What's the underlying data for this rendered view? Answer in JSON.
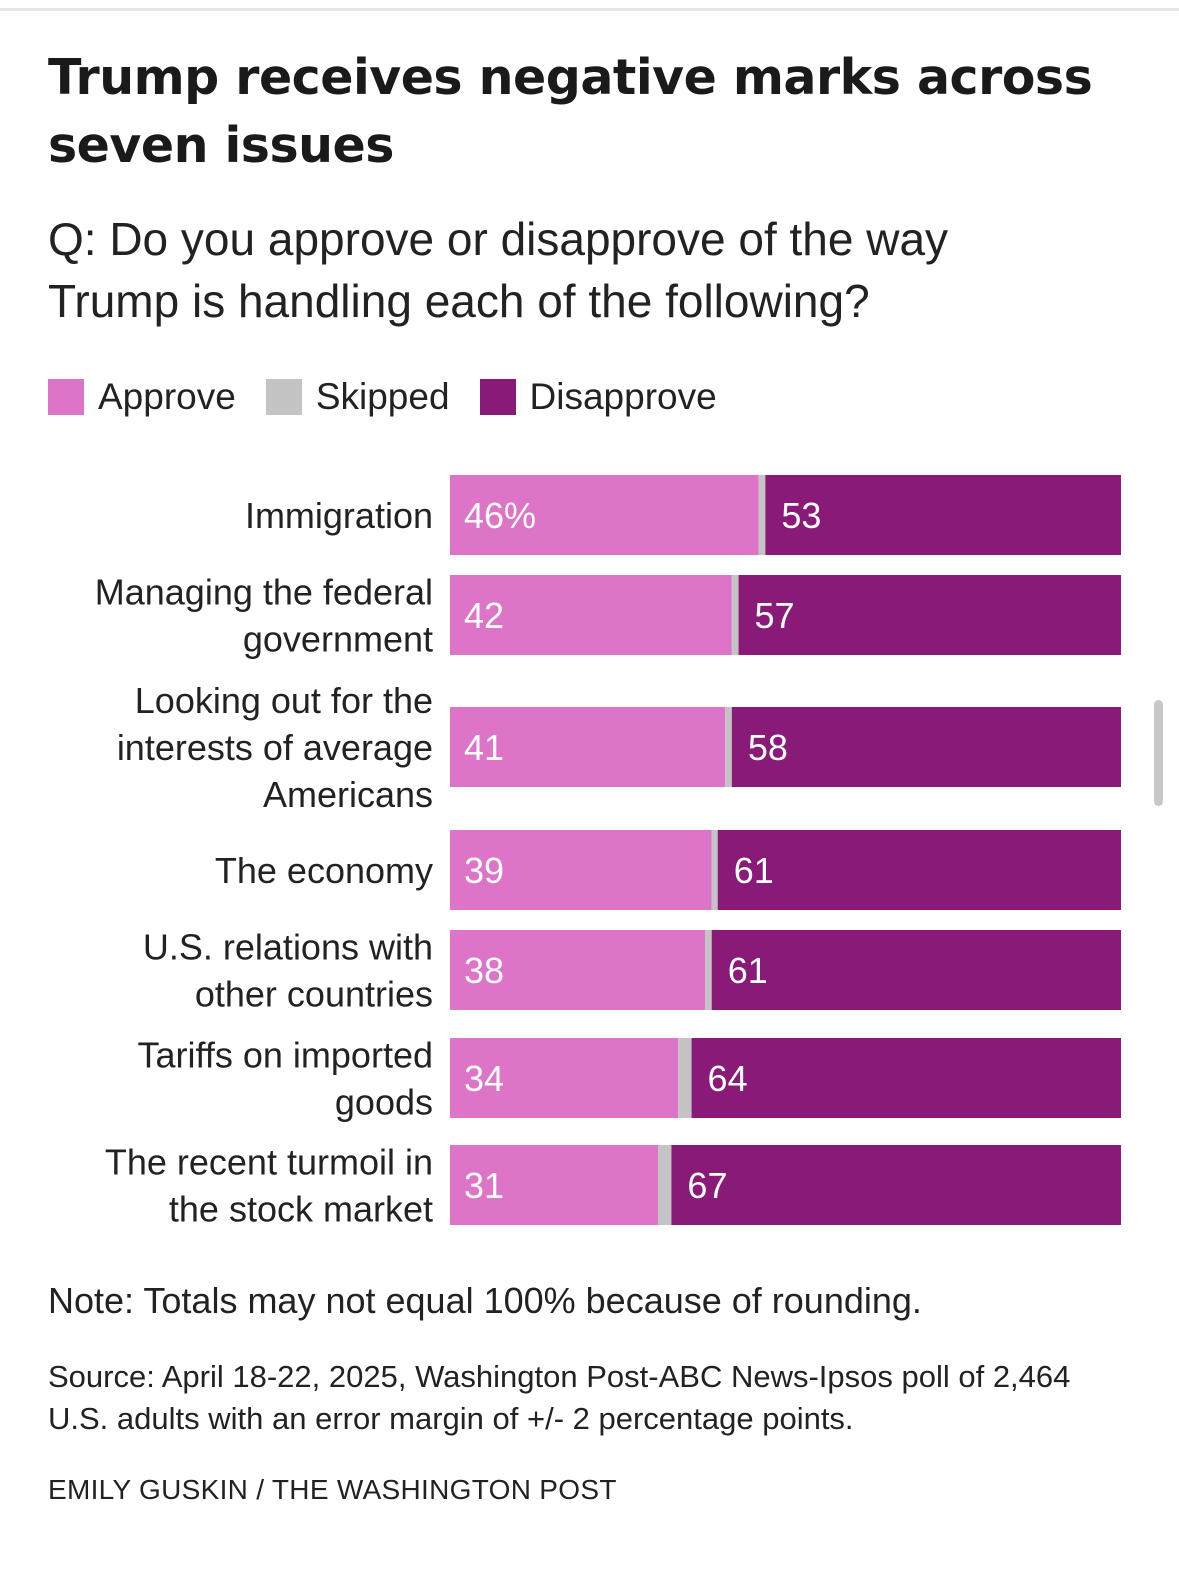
{
  "title": "Trump receives negative marks across seven issues",
  "subtitle": "Q: Do you approve or disapprove of the way Trump is handling each of the following?",
  "legend": [
    {
      "label": "Approve",
      "color": "#dd74c8"
    },
    {
      "label": "Skipped",
      "color": "#c4c4c4"
    },
    {
      "label": "Disapprove",
      "color": "#8a1a78"
    }
  ],
  "chart_data": {
    "type": "bar",
    "orientation": "horizontal",
    "stacked": true,
    "unit": "percent",
    "categories": [
      [
        "Immigration"
      ],
      [
        "Managing the federal",
        "government"
      ],
      [
        "Looking out for the",
        "interests of average",
        "Americans"
      ],
      [
        "The economy"
      ],
      [
        "U.S. relations with",
        "other countries"
      ],
      [
        "Tariffs on imported",
        "goods"
      ],
      [
        "The recent turmoil in",
        "the stock market"
      ]
    ],
    "series": [
      {
        "name": "Approve",
        "color": "#dd74c8",
        "values": [
          46,
          42,
          41,
          39,
          38,
          34,
          31
        ]
      },
      {
        "name": "Skipped",
        "color": "#c4c4c4",
        "values": [
          1,
          1,
          1,
          0,
          1,
          2,
          2
        ]
      },
      {
        "name": "Disapprove",
        "color": "#8a1a78",
        "values": [
          53,
          57,
          58,
          61,
          61,
          64,
          67
        ]
      }
    ],
    "approve_labels": [
      "46%",
      "42",
      "41",
      "39",
      "38",
      "34",
      "31"
    ],
    "disapprove_labels": [
      "53",
      "57",
      "58",
      "61",
      "61",
      "64",
      "67"
    ],
    "xlim": [
      0,
      100
    ]
  },
  "note": "Note: Totals may not equal 100% because of rounding.",
  "source": "Source: April 18-22, 2025, Washington Post-ABC News-Ipsos poll of 2,464 U.S. adults with an error margin of +/- 2 percentage points.",
  "credit": "EMILY GUSKIN / THE WASHINGTON POST"
}
